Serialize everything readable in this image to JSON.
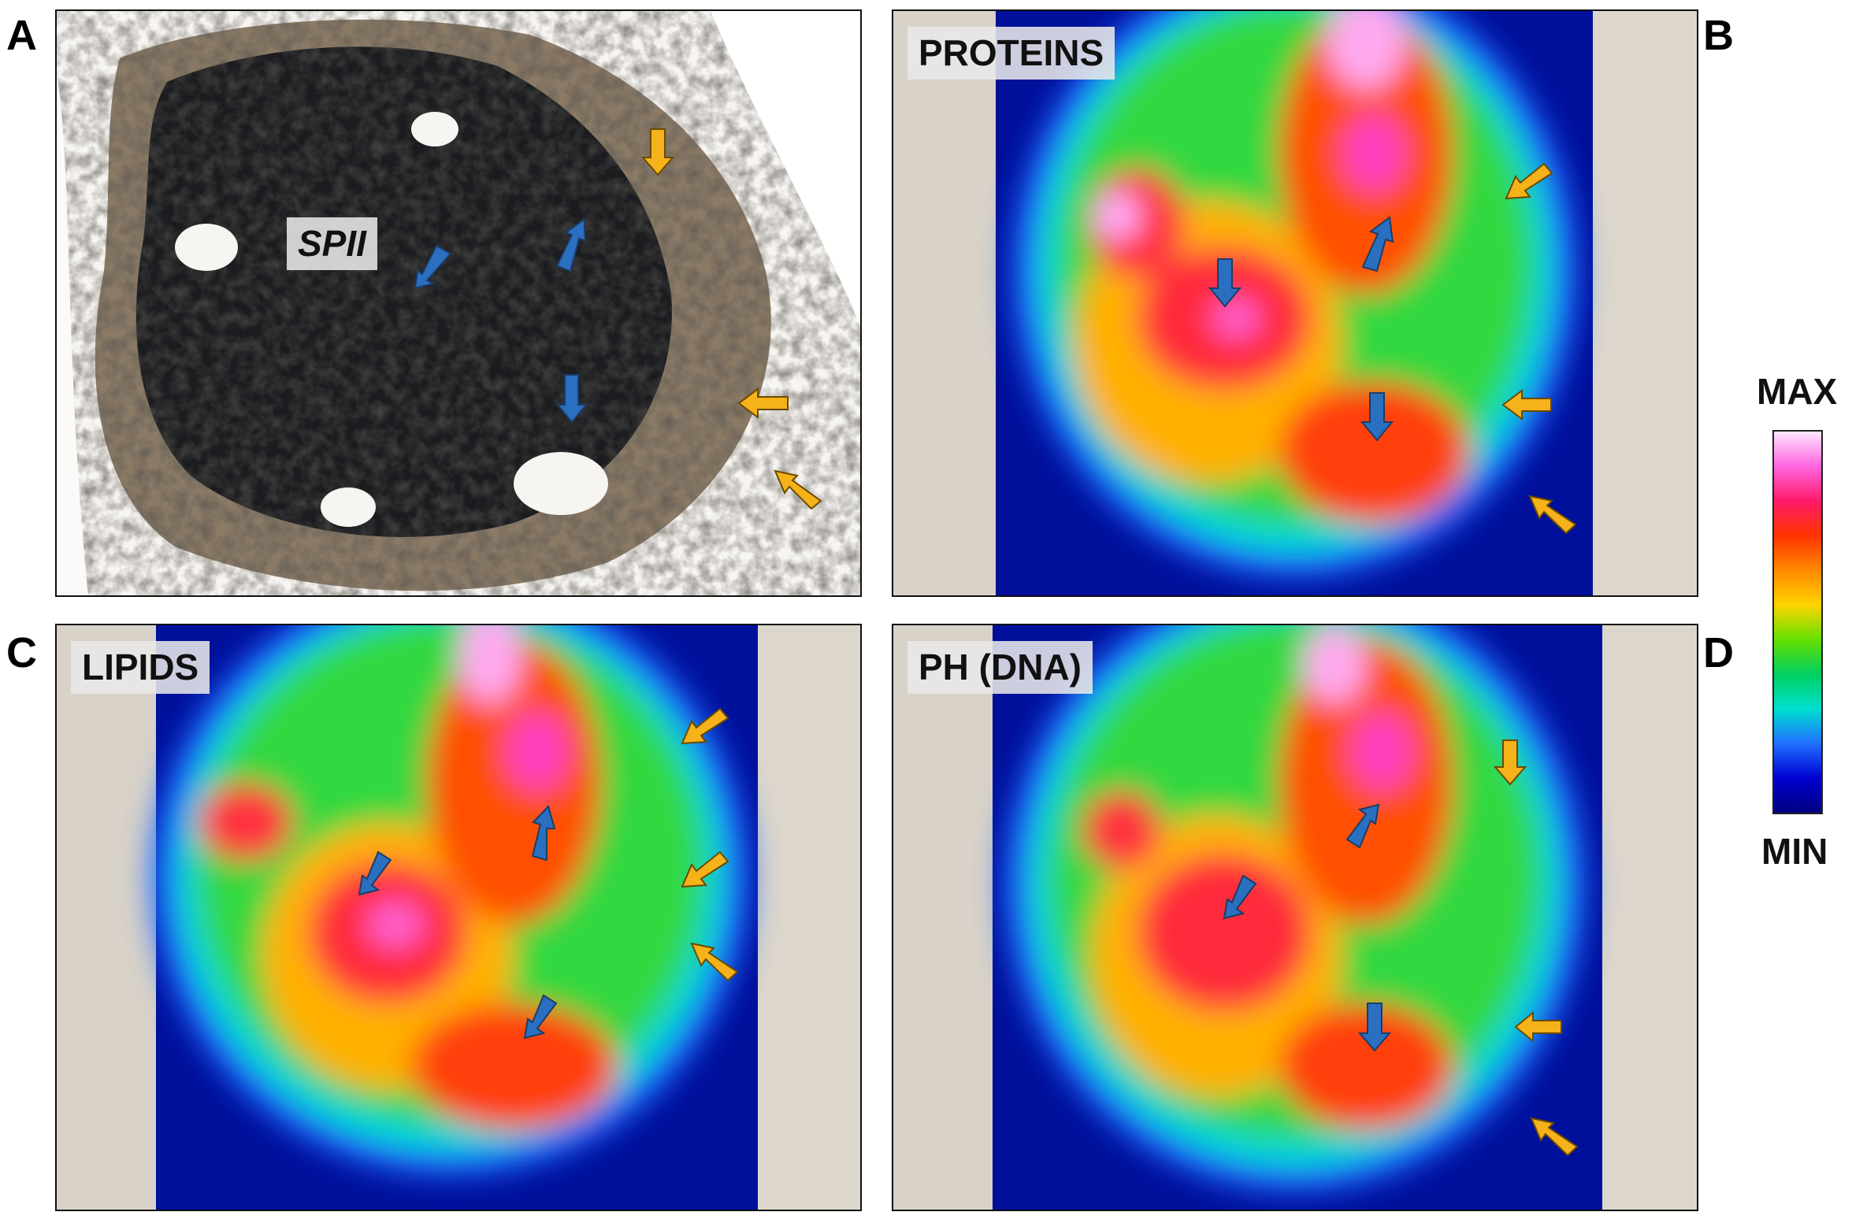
{
  "panels": [
    {
      "letter": "A",
      "label": "SPII",
      "kind": "micrograph"
    },
    {
      "letter": "B",
      "label": "PROTEINS",
      "kind": "heatmap"
    },
    {
      "letter": "C",
      "label": "LIPIDS",
      "kind": "heatmap"
    },
    {
      "letter": "D",
      "label": "PH (DNA)",
      "kind": "heatmap"
    }
  ],
  "colorbar": {
    "max_label": "MAX",
    "min_label": "MIN",
    "colors": [
      "#ffe6ff",
      "#ff66e0",
      "#ff1a6a",
      "#ff3300",
      "#ff8800",
      "#ffd400",
      "#66e000",
      "#00d060",
      "#00e0d0",
      "#2070ff",
      "#0000d0",
      "#000080"
    ]
  },
  "arrow_colors": {
    "blue": "#2a6fc0",
    "orange": "#f5b21a"
  }
}
